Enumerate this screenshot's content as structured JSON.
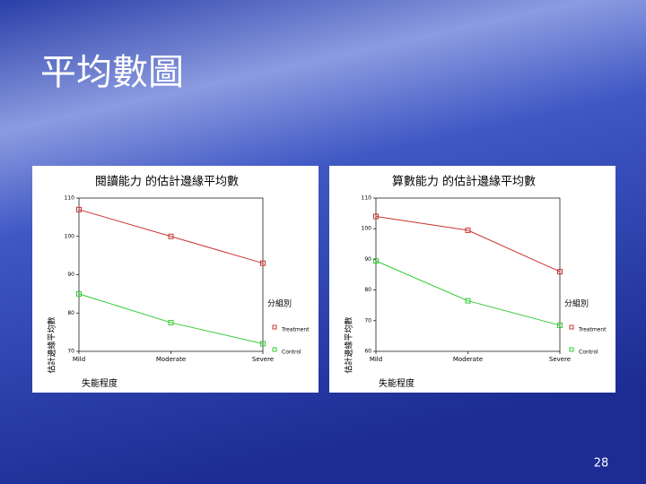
{
  "slide": {
    "title": "平均數圖",
    "page_number": "28"
  },
  "chart_data": [
    {
      "type": "line",
      "title": "閱讀能力 的估計邊緣平均數",
      "x_label": "失能程度",
      "y_label": "估計邊緣平均數",
      "categories": [
        "Mild",
        "Moderate",
        "Severe"
      ],
      "series": [
        {
          "name": "Treatment",
          "color": "#cc3333",
          "values": [
            107,
            100,
            93
          ]
        },
        {
          "name": "Control",
          "color": "#33cc33",
          "values": [
            85,
            77.5,
            72
          ]
        }
      ],
      "legend_title": "分組別",
      "ylim": [
        70,
        110
      ],
      "yticks": [
        70,
        80,
        90,
        100,
        110
      ]
    },
    {
      "type": "line",
      "title": "算數能力 的估計邊緣平均數",
      "x_label": "失能程度",
      "y_label": "估計邊緣平均數",
      "categories": [
        "Mild",
        "Moderate",
        "Severe"
      ],
      "series": [
        {
          "name": "Treatment",
          "color": "#cc3333",
          "values": [
            104,
            99.5,
            86
          ]
        },
        {
          "name": "Control",
          "color": "#33cc33",
          "values": [
            89.5,
            76.5,
            68.5
          ]
        }
      ],
      "legend_title": "分組別",
      "ylim": [
        60,
        110
      ],
      "yticks": [
        60,
        70,
        80,
        90,
        100,
        110
      ]
    }
  ]
}
